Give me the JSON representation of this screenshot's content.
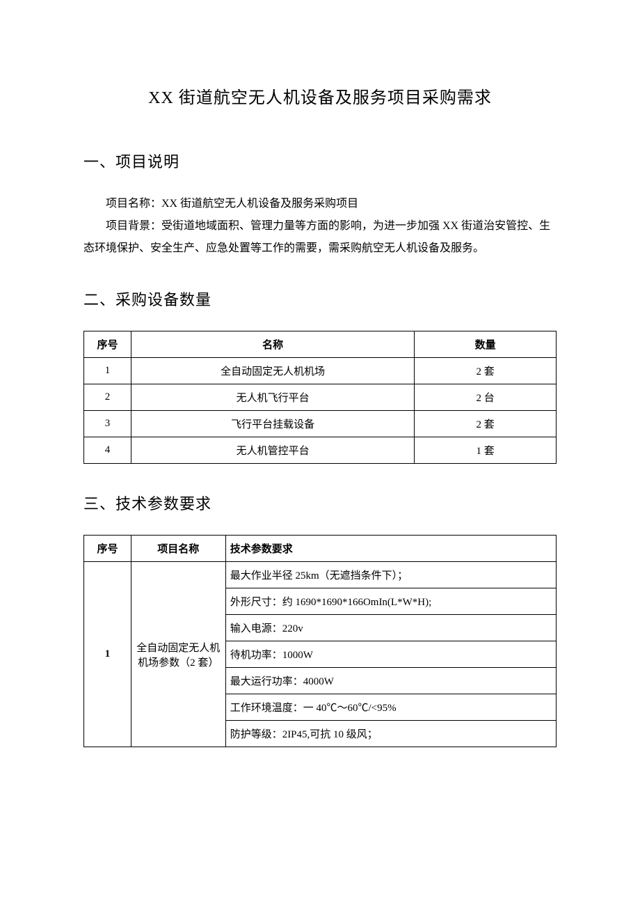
{
  "doc_title": "XX 街道航空无人机设备及服务项目采购需求",
  "section1": {
    "heading": "一、项目说明",
    "line1": "项目名称：XX 街道航空无人机设备及服务采购项目",
    "line2": "项目背景：受街道地域面积、管理力量等方面的影响，为进一步加强 XX 街道治安管控、生态环境保护、安全生产、应急处置等工作的需要，需采购航空无人机设备及服务。"
  },
  "section2": {
    "heading": "二、采购设备数量",
    "table": {
      "headers": {
        "seq": "序号",
        "name": "名称",
        "qty": "数量"
      },
      "rows": [
        {
          "seq": "1",
          "name": "全自动固定无人机机场",
          "qty": "2 套"
        },
        {
          "seq": "2",
          "name": "无人机飞行平台",
          "qty": "2 台"
        },
        {
          "seq": "3",
          "name": "飞行平台挂载设备",
          "qty": "2 套"
        },
        {
          "seq": "4",
          "name": "无人机管控平台",
          "qty": "1 套"
        }
      ]
    }
  },
  "section3": {
    "heading": "三、技术参数要求",
    "table": {
      "headers": {
        "seq": "序号",
        "proj": "项目名称",
        "req": "技术参数要求"
      },
      "item1": {
        "seq": "1",
        "proj": "全自动固定无人机机场参数（2 套）",
        "specs": [
          "最大作业半径 25km（无遮挡条件下）；",
          "外形尺寸：约 1690*1690*166OmIn(L*W*H);",
          "输入电源：220v",
          "待机功率：1000W",
          "最大运行功率：4000W",
          "工作环境温度：一 40℃～60℃/<95%",
          "防护等级：2IP45,可抗 10 级风；"
        ]
      }
    }
  }
}
